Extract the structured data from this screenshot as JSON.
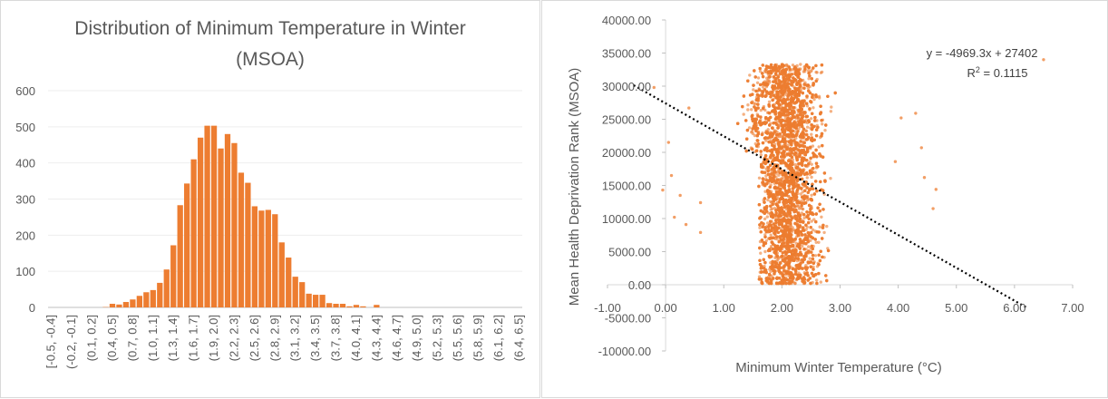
{
  "chart_data": [
    {
      "type": "bar",
      "title_line1": "Distribution of Minimum Temperature in Winter",
      "title_line2": "(MSOA)",
      "categories": [
        "[-0.5, -0.4]",
        "(-0.4, -0.3]",
        "(-0.3, -0.2]",
        "(-0.2, -0.1]",
        "(-0.1, 0.0]",
        "(0.0, 0.1]",
        "(0.1, 0.2]",
        "(0.2, 0.3]",
        "(0.3, 0.4]",
        "(0.4, 0.5]",
        "(0.5, 0.6]",
        "(0.6, 0.7]",
        "(0.7, 0.8]",
        "(0.8, 0.9]",
        "(0.9, 1.0]",
        "(1.0, 1.1]",
        "(1.1, 1.2]",
        "(1.2, 1.3]",
        "(1.3, 1.4]",
        "(1.4, 1.5]",
        "(1.5, 1.6]",
        "(1.6, 1.7]",
        "(1.7, 1.8]",
        "(1.8, 1.9]",
        "(1.9, 2.0]",
        "(2.0, 2.1]",
        "(2.1, 2.2]",
        "(2.2, 2.3]",
        "(2.3, 2.4]",
        "(2.4, 2.5]",
        "(2.5, 2.6]",
        "(2.6, 2.7]",
        "(2.7, 2.8]",
        "(2.8, 2.9]",
        "(2.9, 3.0]",
        "(3.0, 3.1]",
        "(3.1, 3.2]",
        "(3.2, 3.3]",
        "(3.3, 3.4]",
        "(3.4, 3.5]",
        "(3.5, 3.6]",
        "(3.6, 3.7]",
        "(3.7, 3.8]",
        "(3.8, 3.9]",
        "(3.9, 4.0]",
        "(4.0, 4.1]",
        "(4.1, 4.2]",
        "(4.2, 4.3]",
        "(4.3, 4.4]",
        "(4.4, 4.5]",
        "(4.5, 4.6]",
        "(4.6, 4.7]",
        "(4.7, 4.8]",
        "(4.8, 4.9]",
        "(4.9, 5.0]",
        "(5.0, 5.1]",
        "(5.1, 5.2]",
        "(5.2, 5.3]",
        "(5.3, 5.4]",
        "(5.4, 5.5]",
        "(5.5, 5.6]",
        "(5.6, 5.7]",
        "(5.7, 5.8]",
        "(5.8, 5.9]",
        "(5.9, 6.0]",
        "(6.0, 6.1]",
        "(6.1, 6.2]",
        "(6.2, 6.3]",
        "(6.3, 6.4]",
        "(6.4, 6.5]"
      ],
      "values": [
        0,
        0,
        0,
        0,
        0,
        0,
        0,
        0,
        1,
        10,
        8,
        15,
        22,
        32,
        42,
        48,
        68,
        105,
        172,
        283,
        343,
        410,
        470,
        503,
        503,
        440,
        480,
        455,
        373,
        345,
        280,
        268,
        270,
        258,
        180,
        138,
        85,
        70,
        38,
        35,
        35,
        12,
        10,
        10,
        3,
        7,
        3,
        0,
        7,
        0,
        0,
        0,
        0,
        0,
        0,
        0,
        0,
        0,
        0,
        0,
        0,
        0,
        0,
        0,
        0,
        0,
        0,
        0,
        0,
        0
      ],
      "ylim": [
        0,
        600
      ],
      "yticks": [
        "0",
        "100",
        "200",
        "300",
        "400",
        "500",
        "600"
      ],
      "color": "#ED7D31"
    },
    {
      "type": "scatter",
      "xlabel": "Minimum Winter Temperature (°C)",
      "ylabel": "Mean Health Deprivation Rank (MSOA)",
      "xlim": [
        -1,
        7
      ],
      "ylim": [
        -10000,
        40000
      ],
      "xticks": [
        "-1.00",
        "0.00",
        "1.00",
        "2.00",
        "3.00",
        "4.00",
        "5.00",
        "6.00",
        "7.00"
      ],
      "yticks": [
        "-10000.00",
        "-5000.00",
        "0.00",
        "5000.00",
        "10000.00",
        "15000.00",
        "20000.00",
        "25000.00",
        "30000.00",
        "35000.00",
        "40000.00"
      ],
      "point_count": 6800,
      "outliers": [
        [
          6.5,
          34000
        ],
        [
          4.6,
          11500
        ],
        [
          4.65,
          14400
        ],
        [
          4.3,
          25900
        ],
        [
          4.05,
          25200
        ],
        [
          4.45,
          16200
        ],
        [
          4.4,
          20700
        ],
        [
          3.95,
          18600
        ],
        [
          -0.2,
          29800
        ],
        [
          -0.05,
          14300
        ],
        [
          0.1,
          16500
        ],
        [
          0.25,
          13500
        ],
        [
          0.05,
          21500
        ],
        [
          0.6,
          7900
        ],
        [
          0.6,
          12400
        ],
        [
          0.4,
          26700
        ],
        [
          0.35,
          9100
        ],
        [
          0.15,
          10200
        ]
      ],
      "trendline": {
        "slope": -4969.3,
        "intercept": 27402,
        "x_range": [
          -0.55,
          6.2
        ]
      },
      "equation": "y = -4969.3x + 27402",
      "r2_prefix": "R",
      "r2_sup": "2",
      "r2_value": " = 0.1115",
      "color": "#ED7D31"
    }
  ]
}
